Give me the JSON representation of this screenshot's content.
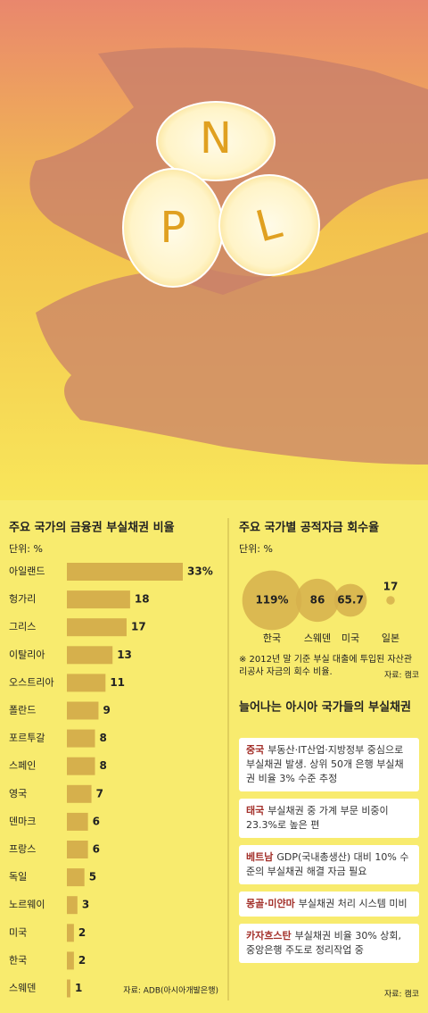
{
  "illustration": {
    "letters": [
      "N",
      "P",
      "L"
    ]
  },
  "chart_data": [
    {
      "type": "hbar",
      "title": "주요 국가의 금융권 부실채권 비율",
      "unit": "단위: %",
      "categories": [
        "아일랜드",
        "헝가리",
        "그리스",
        "이탈리아",
        "오스트리아",
        "폴란드",
        "포르투갈",
        "스페인",
        "영국",
        "덴마크",
        "프랑스",
        "독일",
        "노르웨이",
        "미국",
        "한국",
        "스웨덴"
      ],
      "values": [
        33,
        18,
        17,
        13,
        11,
        9,
        8,
        8,
        7,
        6,
        6,
        5,
        3,
        2,
        2,
        1
      ],
      "value_labels": [
        "33%",
        "18",
        "17",
        "13",
        "11",
        "9",
        "8",
        "8",
        "7",
        "6",
        "6",
        "5",
        "3",
        "2",
        "2",
        "1"
      ],
      "color": "#d6b04c",
      "source": "자료: ADB(아시아개발은행)"
    },
    {
      "type": "bubble",
      "title": "주요 국가별 공적자금 회수율",
      "unit": "단위: %",
      "categories": [
        "한국",
        "스웨덴",
        "미국",
        "일본"
      ],
      "values": [
        119,
        86,
        65.7,
        17
      ],
      "value_labels": [
        "119%",
        "86",
        "65.7",
        "17"
      ],
      "color": "#d6b04c",
      "note": "※ 2012년 말 기준 부실 대출에 투입된 자산관리공사 자금의 회수 비율.",
      "source": "자료: 캠코"
    }
  ],
  "asia": {
    "title": "늘어나는 아시아 국가들의 부실채권",
    "items": [
      {
        "country": "중국",
        "text": "부동산·IT산업·지방정부 중심으로 부실채권 발생. 상위 50개 은행 부실채권 비율 3% 수준 추정"
      },
      {
        "country": "태국",
        "text": "부실채권 중 가계 부문 비중이 23.3%로 높은 편"
      },
      {
        "country": "베트남",
        "text": "GDP(국내총생산) 대비 10% 수준의 부실채권 해결 자금 필요"
      },
      {
        "country": "몽골·미얀마",
        "text": "부실채권 처리 시스템 미비"
      },
      {
        "country": "카자흐스탄",
        "text": "부실채권 비율 30% 상회, 중앙은행 주도로 정리작업 중"
      }
    ],
    "source": "자료: 캠코"
  }
}
